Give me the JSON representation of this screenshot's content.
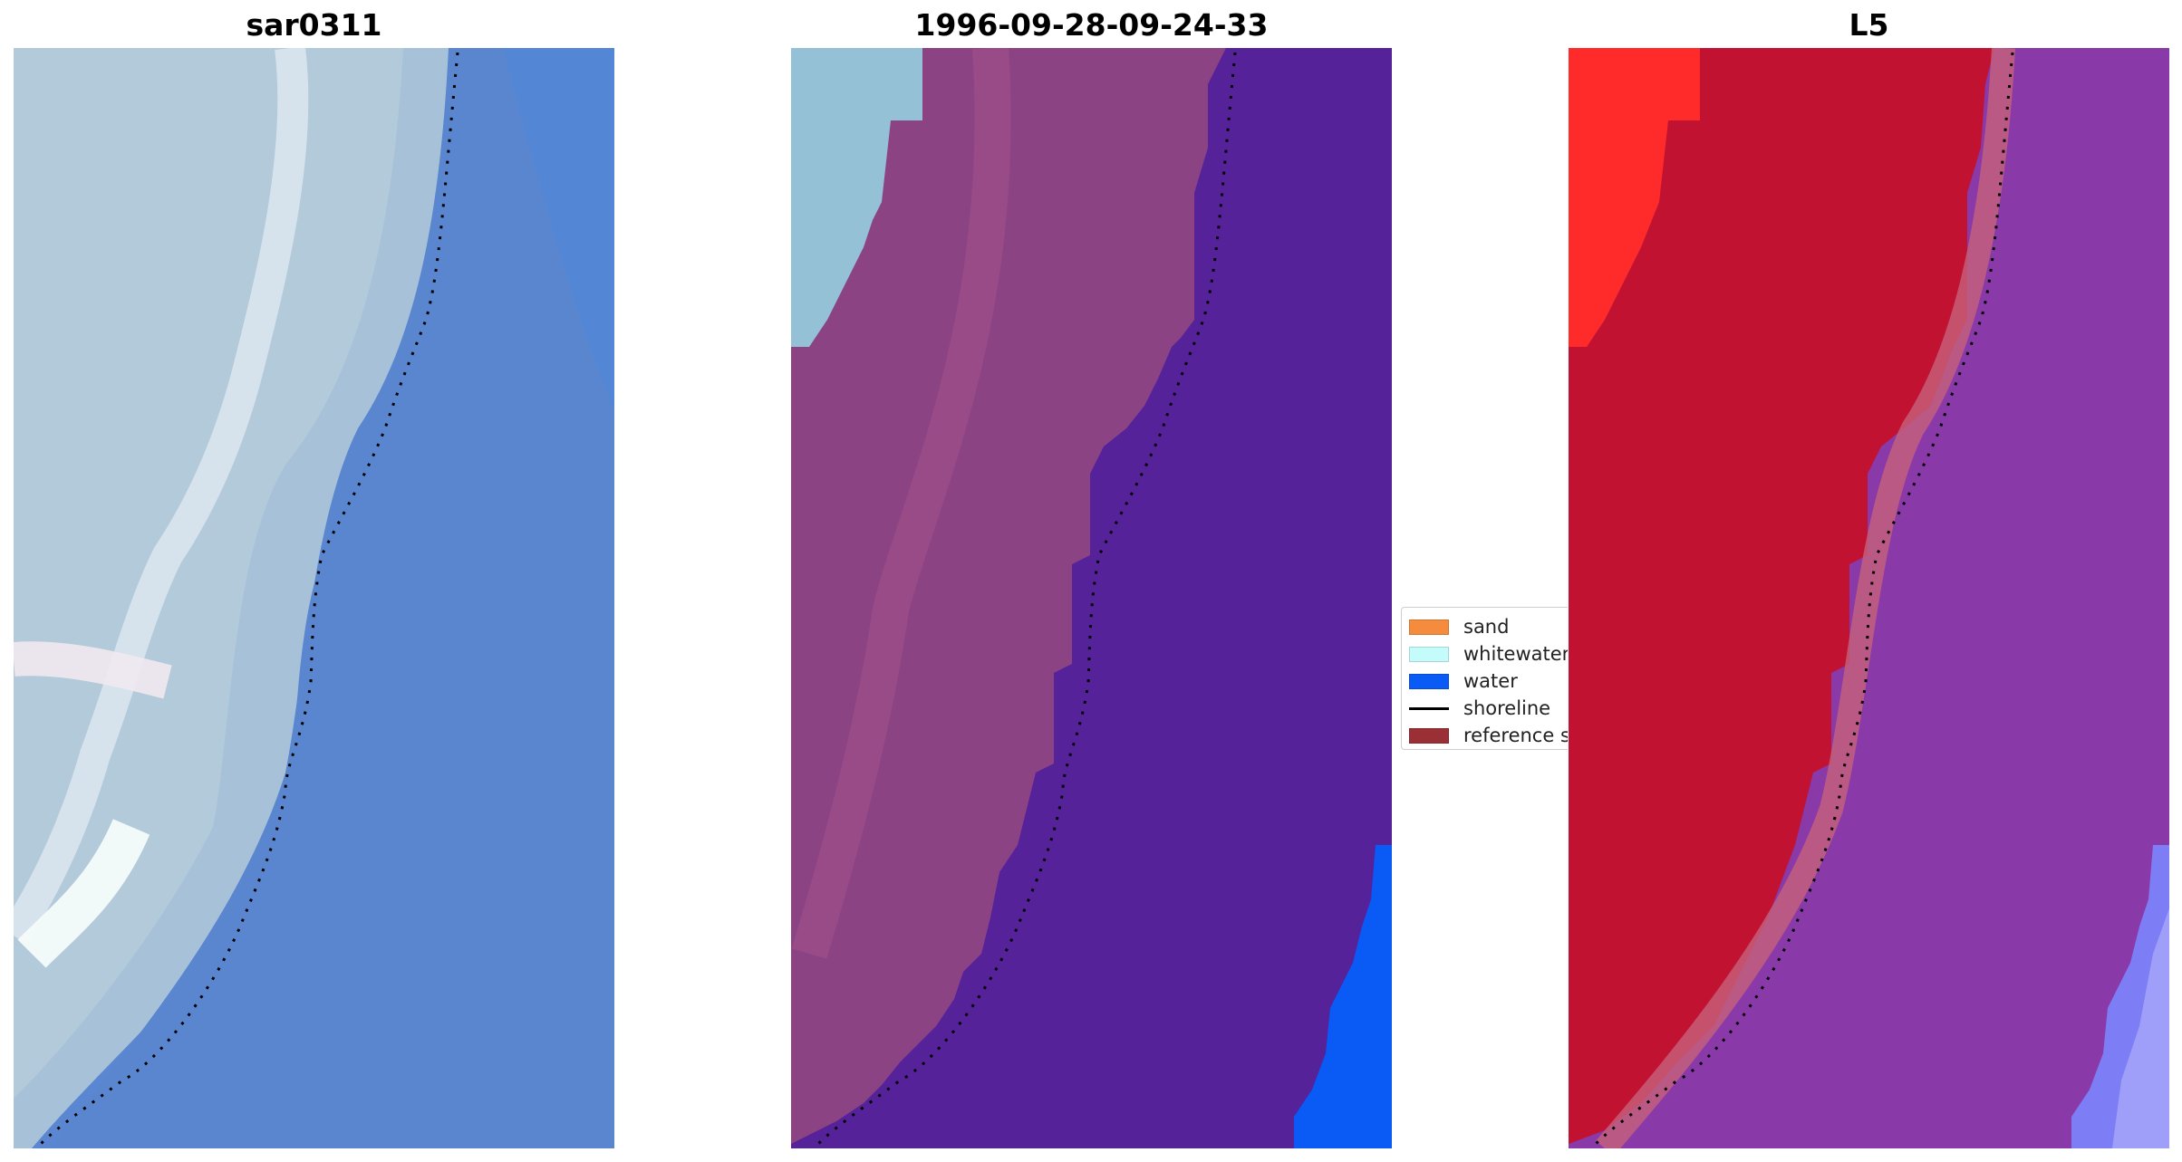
{
  "panels": [
    {
      "title": "sar0311",
      "key": "rgb"
    },
    {
      "title": "1996-09-28-09-24-33",
      "key": "classified"
    },
    {
      "title": "L5",
      "key": "ndwi"
    }
  ],
  "legend": {
    "items": [
      {
        "label": "sand",
        "color": "#f58b3c",
        "kind": "patch"
      },
      {
        "label": "whitewater",
        "color": "#c4fbfb",
        "kind": "patch"
      },
      {
        "label": "water",
        "color": "#0a5af5",
        "kind": "patch"
      },
      {
        "label": "shoreline",
        "color": "#000000",
        "kind": "line"
      },
      {
        "label": "reference s",
        "color": "#9b2f36",
        "kind": "patch"
      }
    ]
  },
  "colors": {
    "rgb_land": "#a6c3d9",
    "rgb_water": "#4f7fcf",
    "class_land": "#8c4384",
    "class_whitewater": "#94c1d6",
    "class_water": "#53219a",
    "class_bluewater": "#0a5af5",
    "ndwi_red": "#c11232",
    "ndwi_bright_red": "#ff2b2b",
    "ndwi_purple": "#8a3aa8",
    "ndwi_lilac": "#a66fc4",
    "shoreline": "#000000"
  }
}
